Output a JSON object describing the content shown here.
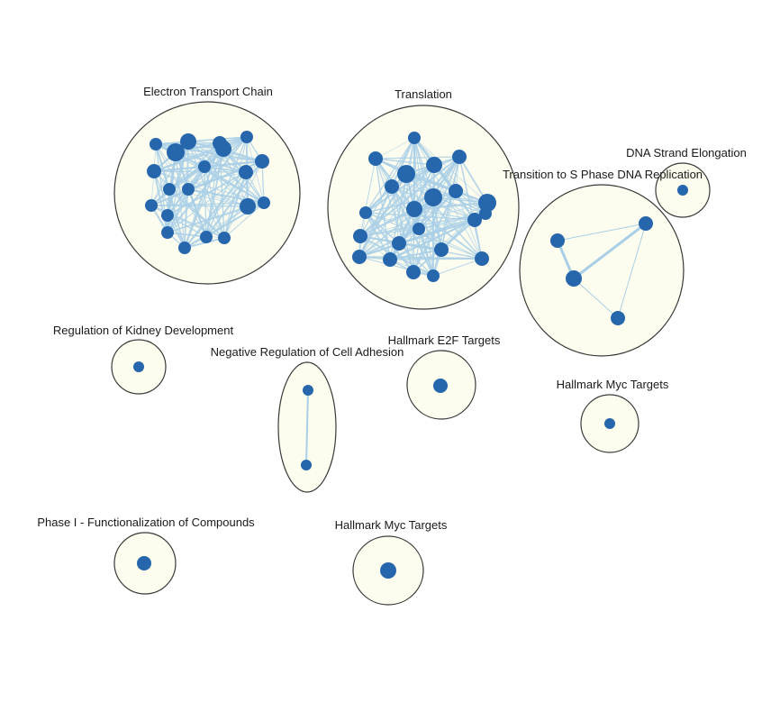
{
  "colors": {
    "background": "#ffffff",
    "cluster_fill": "#fdfdef",
    "cluster_stroke": "#3a3a3a",
    "node_fill": "#2666ad",
    "edge": "#a9cfe6"
  },
  "clusters": [
    {
      "id": "etc",
      "label": "Electron Transport Chain",
      "node_count": 22
    },
    {
      "id": "translation",
      "label": "Translation",
      "node_count": 28
    },
    {
      "id": "dna-strand",
      "label": "DNA Strand Elongation",
      "node_count": 1
    },
    {
      "id": "s-phase",
      "label": "Transition to S Phase DNA Replication",
      "node_count": 4
    },
    {
      "id": "kidney",
      "label": "Regulation of Kidney Development",
      "node_count": 1
    },
    {
      "id": "adhesion",
      "label": "Negative Regulation of Cell Adhesion",
      "node_count": 2
    },
    {
      "id": "e2f",
      "label": "Hallmark E2F Targets",
      "node_count": 1
    },
    {
      "id": "myc-1",
      "label": "Hallmark Myc Targets",
      "node_count": 1
    },
    {
      "id": "phase1",
      "label": "Phase I - Functionalization of Compounds",
      "node_count": 1
    },
    {
      "id": "myc-2",
      "label": "Hallmark Myc Targets",
      "node_count": 1
    }
  ]
}
